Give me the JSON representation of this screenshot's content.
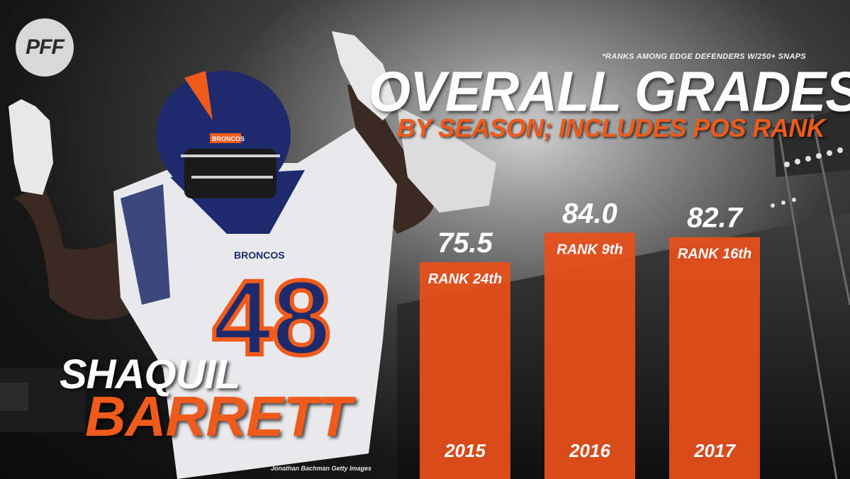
{
  "brand": {
    "logo_text": "PFF"
  },
  "footnote": "*RANKS AMONG EDGE DEFENDERS W/250+ SNAPS",
  "title": "OVERALL GRADES",
  "subtitle": "BY SEASON; INCLUDES POS RANK",
  "player": {
    "first_name": "SHAQUIL",
    "last_name": "BARRETT",
    "jersey_number": "48",
    "helmet_text": "BRONCOS",
    "jersey_text": "BRONCOS"
  },
  "credit": "Jonathan Bachman Getty Images",
  "colors": {
    "accent": "#f05a1a",
    "bar": "#e8501c",
    "text": "#ffffff"
  },
  "chart_data": {
    "type": "bar",
    "categories": [
      "2015",
      "2016",
      "2017"
    ],
    "values": [
      75.5,
      84.0,
      82.7
    ],
    "value_labels": [
      "75.5",
      "84.0",
      "82.7"
    ],
    "rank_labels": [
      "RANK 24th",
      "RANK 9th",
      "RANK 16th"
    ],
    "ylim": [
      0,
      100
    ],
    "grid": false,
    "legend": "none"
  }
}
